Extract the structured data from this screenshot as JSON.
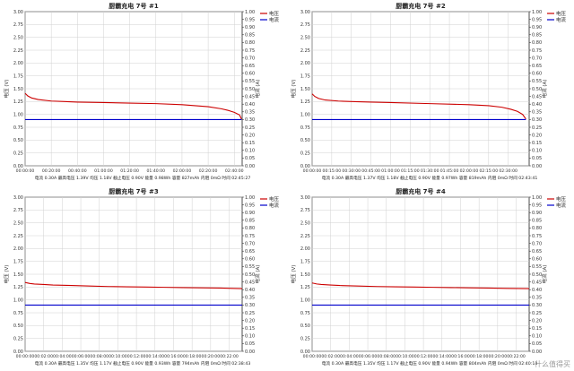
{
  "colors": {
    "voltage": "#cc0000",
    "current": "#0000cc",
    "grid": "#d0d0d0",
    "axis": "#222222",
    "bg": "#ffffff"
  },
  "watermark": "什么值得买",
  "chart_data": [
    {
      "type": "line",
      "title": "厨霸充电 7号 #1",
      "ylabel": "电压 (V)",
      "y2label": "电流 (A)",
      "ylim": [
        0,
        3.0
      ],
      "y2lim": [
        0,
        1.0
      ],
      "yticks": [
        "0.00",
        "0.25",
        "0.50",
        "0.75",
        "1.00",
        "1.25",
        "1.50",
        "1.75",
        "2.00",
        "2.25",
        "2.50",
        "2.75",
        "3.00"
      ],
      "y2ticks": [
        "0.00",
        "0.05",
        "0.10",
        "0.15",
        "0.20",
        "0.25",
        "0.30",
        "0.35",
        "0.40",
        "0.45",
        "0.50",
        "0.55",
        "0.60",
        "0.65",
        "0.70",
        "0.75",
        "0.80",
        "0.85",
        "0.90",
        "0.95",
        "1.00"
      ],
      "xticks": [
        "00:00:00",
        "00:20:00",
        "00:40:00",
        "01:00:00",
        "01:20:00",
        "01:40:00",
        "02:00:00",
        "02:20:00",
        "02:40:00"
      ],
      "xmax_min": 166,
      "legend": [
        "电压",
        "电流"
      ],
      "legend_position": "top-right",
      "grid": true,
      "x": [
        0,
        2,
        5,
        10,
        20,
        30,
        40,
        60,
        80,
        100,
        120,
        130,
        140,
        150,
        155,
        160,
        164,
        165.5
      ],
      "series": [
        {
          "name": "电压",
          "axis": "left",
          "values": [
            1.41,
            1.36,
            1.32,
            1.29,
            1.26,
            1.25,
            1.24,
            1.23,
            1.22,
            1.21,
            1.19,
            1.17,
            1.15,
            1.11,
            1.08,
            1.04,
            0.99,
            0.91
          ]
        },
        {
          "name": "电流",
          "axis": "right",
          "values": [
            0.3,
            0.3,
            0.3,
            0.3,
            0.3,
            0.3,
            0.3,
            0.3,
            0.3,
            0.3,
            0.3,
            0.3,
            0.3,
            0.3,
            0.3,
            0.3,
            0.3,
            0.3
          ]
        }
      ],
      "summary": "电流 0.30A  最高电压 1.39V  均压 1.18V  截止电压 0.90V  能量 0.98Wh  容量 827mAh  内阻 0mΩ  时间 02:45:27"
    },
    {
      "type": "line",
      "title": "厨霸充电 7号 #2",
      "ylabel": "电压 (V)",
      "y2label": "电流 (A)",
      "ylim": [
        0,
        3.0
      ],
      "y2lim": [
        0,
        1.0
      ],
      "yticks": [
        "0.00",
        "0.25",
        "0.50",
        "0.75",
        "1.00",
        "1.25",
        "1.50",
        "1.75",
        "2.00",
        "2.25",
        "2.50",
        "2.75",
        "3.00"
      ],
      "y2ticks": [
        "0.00",
        "0.05",
        "0.10",
        "0.15",
        "0.20",
        "0.25",
        "0.30",
        "0.35",
        "0.40",
        "0.45",
        "0.50",
        "0.55",
        "0.60",
        "0.65",
        "0.70",
        "0.75",
        "0.80",
        "0.85",
        "0.90",
        "0.95",
        "1.00"
      ],
      "xticks": [
        "00:00:00",
        "00:15:00",
        "00:30:00",
        "00:45:00",
        "01:00:00",
        "01:15:00",
        "01:30:00",
        "01:45:00",
        "02:00:00",
        "02:15:00",
        "02:30:00"
      ],
      "xmax_min": 166,
      "legend": [
        "电压",
        "电流"
      ],
      "legend_position": "top-right",
      "grid": true,
      "x": [
        0,
        2,
        5,
        10,
        20,
        30,
        45,
        60,
        90,
        120,
        135,
        145,
        152,
        157,
        161,
        163.5
      ],
      "series": [
        {
          "name": "电压",
          "axis": "left",
          "values": [
            1.4,
            1.35,
            1.31,
            1.28,
            1.26,
            1.25,
            1.24,
            1.23,
            1.21,
            1.19,
            1.17,
            1.14,
            1.1,
            1.06,
            1.0,
            0.91
          ]
        },
        {
          "name": "电流",
          "axis": "right",
          "values": [
            0.3,
            0.3,
            0.3,
            0.3,
            0.3,
            0.3,
            0.3,
            0.3,
            0.3,
            0.3,
            0.3,
            0.3,
            0.3,
            0.3,
            0.3,
            0.3
          ]
        }
      ],
      "summary": "电流 0.30A  最高电压 1.37V  均压 1.18V  截止电压 0.90V  能量 0.97Wh  容量 819mAh  内阻 0mΩ  时间 02:43:41"
    },
    {
      "type": "line",
      "title": "厨霸充电 7号 #3",
      "ylabel": "电压 (V)",
      "y2label": "电流 (A)",
      "ylim": [
        0,
        3.0
      ],
      "y2lim": [
        0,
        1.0
      ],
      "yticks": [
        "0.00",
        "0.25",
        "0.50",
        "0.75",
        "1.00",
        "1.25",
        "1.50",
        "1.75",
        "2.00",
        "2.25",
        "2.50",
        "2.75",
        "3.00"
      ],
      "y2ticks": [
        "0.00",
        "0.05",
        "0.10",
        "0.15",
        "0.20",
        "0.25",
        "0.30",
        "0.35",
        "0.40",
        "0.45",
        "0.50",
        "0.55",
        "0.60",
        "0.65",
        "0.70",
        "0.75",
        "0.80",
        "0.85",
        "0.90",
        "0.95",
        "1.00"
      ],
      "xticks": [
        "00:00:00",
        "00:02:00",
        "00:04:00",
        "00:06:00",
        "00:08:00",
        "00:10:00",
        "00:12:00",
        "00:14:00",
        "00:16:00",
        "00:18:00",
        "00:20:00",
        "00:22:00"
      ],
      "xmax_min": 23.4,
      "legend": [
        "电压",
        "电流"
      ],
      "legend_position": "top-right",
      "grid": true,
      "x": [
        0,
        0.5,
        1,
        2,
        3,
        5,
        7,
        9,
        11,
        13,
        15,
        17,
        19,
        21,
        23.4
      ],
      "series": [
        {
          "name": "电压",
          "axis": "left",
          "values": [
            1.34,
            1.32,
            1.31,
            1.3,
            1.29,
            1.28,
            1.27,
            1.26,
            1.255,
            1.25,
            1.245,
            1.24,
            1.235,
            1.23,
            1.22
          ]
        },
        {
          "name": "电流",
          "axis": "right",
          "values": [
            0.3,
            0.3,
            0.3,
            0.3,
            0.3,
            0.3,
            0.3,
            0.3,
            0.3,
            0.3,
            0.3,
            0.3,
            0.3,
            0.3,
            0.3
          ]
        }
      ],
      "summary": "电流 0.30A  最高电压 1.35V  均压 1.17V  截止电压 0.90V  能量 0.93Wh  容量 794mAh  内阻 0mΩ  时间 02:38:43"
    },
    {
      "type": "line",
      "title": "厨霸充电 7号 #4",
      "ylabel": "电压 (V)",
      "y2label": "电流 (A)",
      "ylim": [
        0,
        3.0
      ],
      "y2lim": [
        0,
        1.0
      ],
      "yticks": [
        "0.00",
        "0.25",
        "0.50",
        "0.75",
        "1.00",
        "1.25",
        "1.50",
        "1.75",
        "2.00",
        "2.25",
        "2.50",
        "2.75",
        "3.00"
      ],
      "y2ticks": [
        "0.00",
        "0.05",
        "0.10",
        "0.15",
        "0.20",
        "0.25",
        "0.30",
        "0.35",
        "0.40",
        "0.45",
        "0.50",
        "0.55",
        "0.60",
        "0.65",
        "0.70",
        "0.75",
        "0.80",
        "0.85",
        "0.90",
        "0.95",
        "1.00"
      ],
      "xticks": [
        "00:00:00",
        "00:02:00",
        "00:04:00",
        "00:06:00",
        "00:08:00",
        "00:10:00",
        "00:12:00",
        "00:14:00",
        "00:16:00",
        "00:18:00",
        "00:20:00",
        "00:22:00"
      ],
      "xmax_min": 23.4,
      "legend": [
        "电压",
        "电流"
      ],
      "legend_position": "top-right",
      "grid": true,
      "x": [
        0,
        0.5,
        1,
        2,
        3,
        5,
        7,
        9,
        11,
        13,
        15,
        17,
        19,
        21,
        23.4
      ],
      "series": [
        {
          "name": "电压",
          "axis": "left",
          "values": [
            1.33,
            1.31,
            1.3,
            1.29,
            1.28,
            1.27,
            1.26,
            1.255,
            1.25,
            1.245,
            1.24,
            1.235,
            1.23,
            1.225,
            1.22
          ]
        },
        {
          "name": "电流",
          "axis": "right",
          "values": [
            0.3,
            0.3,
            0.3,
            0.3,
            0.3,
            0.3,
            0.3,
            0.3,
            0.3,
            0.3,
            0.3,
            0.3,
            0.3,
            0.3,
            0.3
          ]
        }
      ],
      "summary": "电流 0.30A  最高电压 1.35V  均压 1.17V  截止电压 0.90V  能量 0.94Wh  容量 804mAh  内阻 0mΩ  时间 02:40:13"
    }
  ]
}
